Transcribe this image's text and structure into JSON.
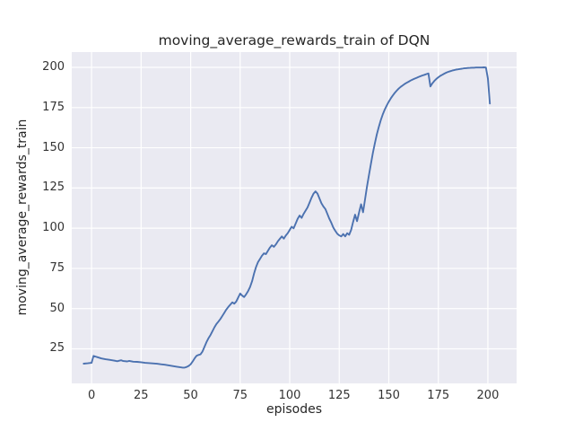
{
  "chart_data": {
    "type": "line",
    "title": "moving_average_rewards_train of DQN",
    "xlabel": "episodes",
    "ylabel": "moving_average_rewards_train",
    "xlim": [
      -10,
      214.5
    ],
    "ylim": [
      3.5,
      209.5
    ],
    "xticks": [
      0,
      25,
      50,
      75,
      100,
      125,
      150,
      175,
      200
    ],
    "yticks": [
      25,
      50,
      75,
      100,
      125,
      150,
      175,
      200
    ],
    "grid": true,
    "legend": false,
    "style": "seaborn-darkgrid",
    "colors": {
      "figure_background": "#ffffff",
      "plot_background": "#eaeaf2",
      "gridline": "#ffffff",
      "line": "#4c72b0",
      "text": "#262626",
      "tick_text": "#333333"
    },
    "series": [
      {
        "name": "moving_average_rewards_train",
        "color": "#4c72b0",
        "points": [
          [
            -4,
            15.8
          ],
          [
            -2,
            16
          ],
          [
            0,
            16.3
          ],
          [
            1,
            20.6
          ],
          [
            2,
            20.2
          ],
          [
            3,
            19.8
          ],
          [
            5,
            19
          ],
          [
            7,
            18.5
          ],
          [
            9,
            18.2
          ],
          [
            11,
            17.8
          ],
          [
            13,
            17.3
          ],
          [
            14,
            17.6
          ],
          [
            15,
            17.9
          ],
          [
            16,
            17.4
          ],
          [
            18,
            17.2
          ],
          [
            19,
            17.5
          ],
          [
            21,
            17
          ],
          [
            23,
            16.9
          ],
          [
            25,
            16.7
          ],
          [
            27,
            16.3
          ],
          [
            30,
            16
          ],
          [
            33,
            15.7
          ],
          [
            35,
            15.4
          ],
          [
            37,
            15.1
          ],
          [
            39,
            14.7
          ],
          [
            41,
            14.3
          ],
          [
            43,
            13.9
          ],
          [
            45,
            13.5
          ],
          [
            46,
            13.3
          ],
          [
            47,
            13.3
          ],
          [
            48,
            13.7
          ],
          [
            49,
            14.4
          ],
          [
            50,
            15.4
          ],
          [
            51,
            17.1
          ],
          [
            52,
            19.1
          ],
          [
            53,
            20.7
          ],
          [
            54,
            21.2
          ],
          [
            55,
            21.6
          ],
          [
            56,
            23.4
          ],
          [
            57,
            26.3
          ],
          [
            58,
            29.1
          ],
          [
            59,
            31.5
          ],
          [
            60,
            33.6
          ],
          [
            61,
            36
          ],
          [
            62,
            38.4
          ],
          [
            63,
            40.4
          ],
          [
            64,
            41.9
          ],
          [
            65,
            43.5
          ],
          [
            66,
            45.4
          ],
          [
            67,
            47.4
          ],
          [
            68,
            49.4
          ],
          [
            69,
            51
          ],
          [
            70,
            52.4
          ],
          [
            71,
            53.9
          ],
          [
            72,
            53.1
          ],
          [
            73,
            54.4
          ],
          [
            74,
            56.9
          ],
          [
            75,
            59.4
          ],
          [
            76,
            58.1
          ],
          [
            77,
            57.2
          ],
          [
            78,
            58.9
          ],
          [
            79,
            60.9
          ],
          [
            80,
            63.4
          ],
          [
            81,
            67.1
          ],
          [
            82,
            71.9
          ],
          [
            83,
            75.9
          ],
          [
            84,
            78.9
          ],
          [
            85,
            80.9
          ],
          [
            86,
            82.9
          ],
          [
            87,
            84.4
          ],
          [
            88,
            83.9
          ],
          [
            89,
            85.9
          ],
          [
            90,
            87.9
          ],
          [
            91,
            89.4
          ],
          [
            92,
            88.4
          ],
          [
            93,
            89.9
          ],
          [
            94,
            91.9
          ],
          [
            95,
            93.4
          ],
          [
            96,
            94.9
          ],
          [
            97,
            93.5
          ],
          [
            98,
            95.4
          ],
          [
            99,
            96.9
          ],
          [
            100,
            98.9
          ],
          [
            101,
            100.9
          ],
          [
            102,
            99.9
          ],
          [
            103,
            102.9
          ],
          [
            104,
            105.9
          ],
          [
            105,
            107.9
          ],
          [
            106,
            106.4
          ],
          [
            107,
            108.9
          ],
          [
            108,
            110.9
          ],
          [
            109,
            112.9
          ],
          [
            110,
            115.9
          ],
          [
            111,
            118.9
          ],
          [
            112,
            121.4
          ],
          [
            113,
            122.9
          ],
          [
            114,
            121.5
          ],
          [
            115,
            118.5
          ],
          [
            116,
            115.5
          ],
          [
            117,
            113.5
          ],
          [
            118,
            111.9
          ],
          [
            119,
            108.9
          ],
          [
            120,
            105.9
          ],
          [
            121,
            103.4
          ],
          [
            122,
            100.4
          ],
          [
            123,
            98.4
          ],
          [
            124,
            96.5
          ],
          [
            125,
            95.5
          ],
          [
            126,
            94.9
          ],
          [
            127,
            96.4
          ],
          [
            128,
            94.9
          ],
          [
            129,
            96.9
          ],
          [
            130,
            95.9
          ],
          [
            131,
            98.9
          ],
          [
            132,
            103.9
          ],
          [
            133,
            108.4
          ],
          [
            134,
            104.4
          ],
          [
            135,
            109.9
          ],
          [
            136,
            114.9
          ],
          [
            137,
            109.9
          ],
          [
            138,
            117.9
          ],
          [
            139,
            125.9
          ],
          [
            140,
            133.1
          ],
          [
            141,
            140.1
          ],
          [
            142,
            146.9
          ],
          [
            143,
            152.9
          ],
          [
            144,
            158.4
          ],
          [
            145,
            163
          ],
          [
            146,
            167.4
          ],
          [
            147,
            170.9
          ],
          [
            148,
            173.9
          ],
          [
            149,
            176.4
          ],
          [
            150,
            178.7
          ],
          [
            151,
            180.7
          ],
          [
            152,
            182.5
          ],
          [
            153,
            184.1
          ],
          [
            154,
            185.5
          ],
          [
            155,
            186.8
          ],
          [
            156,
            187.9
          ],
          [
            157,
            188.8
          ],
          [
            158,
            189.7
          ],
          [
            159,
            190.4
          ],
          [
            160,
            191.1
          ],
          [
            161,
            191.8
          ],
          [
            162,
            192.4
          ],
          [
            163,
            193
          ],
          [
            164,
            193.5
          ],
          [
            165,
            194
          ],
          [
            166,
            194.5
          ],
          [
            167,
            195
          ],
          [
            168,
            195.4
          ],
          [
            169,
            195.8
          ],
          [
            170,
            196.2
          ],
          [
            171,
            188.1
          ],
          [
            172,
            190.1
          ],
          [
            173,
            191.6
          ],
          [
            174,
            192.8
          ],
          [
            175,
            193.8
          ],
          [
            176,
            194.7
          ],
          [
            177,
            195.4
          ],
          [
            178,
            196.1
          ],
          [
            179,
            196.7
          ],
          [
            180,
            197.2
          ],
          [
            181,
            197.6
          ],
          [
            182,
            198
          ],
          [
            183,
            198.3
          ],
          [
            184,
            198.6
          ],
          [
            185,
            198.8
          ],
          [
            186,
            199
          ],
          [
            187,
            199.2
          ],
          [
            188,
            199.4
          ],
          [
            189,
            199.5
          ],
          [
            190,
            199.6
          ],
          [
            191,
            199.7
          ],
          [
            192,
            199.8
          ],
          [
            193,
            199.8
          ],
          [
            194,
            199.9
          ],
          [
            195,
            199.9
          ],
          [
            196,
            199.9
          ],
          [
            197,
            199.9
          ],
          [
            198,
            200
          ],
          [
            199,
            199.9
          ],
          [
            200,
            193
          ],
          [
            201,
            177.5
          ]
        ]
      }
    ]
  }
}
